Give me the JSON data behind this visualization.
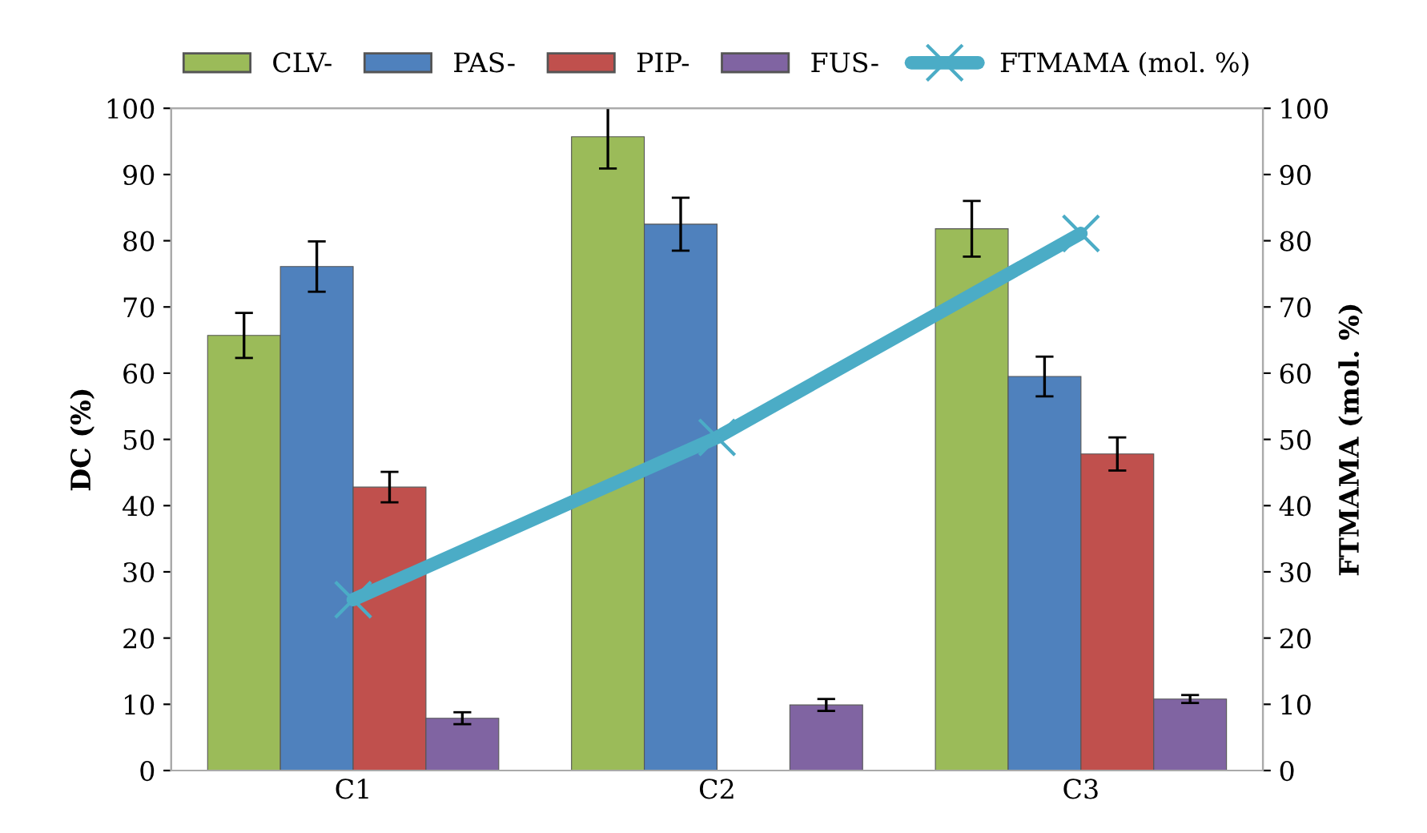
{
  "chart_data": {
    "type": "bar",
    "categories": [
      "C1",
      "C2",
      "C3"
    ],
    "ylabel": "DC (%)",
    "y2label": "FTMAMA (mol. %)",
    "ylim": [
      0,
      100
    ],
    "yticks": [
      0,
      10,
      20,
      30,
      40,
      50,
      60,
      70,
      80,
      90,
      100
    ],
    "y2lim": [
      0,
      100
    ],
    "y2ticks": [
      0,
      10,
      20,
      30,
      40,
      50,
      60,
      70,
      80,
      90,
      100
    ],
    "legend": "top",
    "grid": false,
    "series": [
      {
        "name": "CLV-",
        "color": "#9bbb59",
        "values": [
          65.7,
          95.7,
          81.8
        ],
        "errors": [
          3.4,
          4.8,
          4.2
        ]
      },
      {
        "name": "PAS-",
        "color": "#4f81bd",
        "values": [
          76.1,
          82.5,
          59.5
        ],
        "errors": [
          3.8,
          4.0,
          3.0
        ]
      },
      {
        "name": "PIP-",
        "color": "#c0504d",
        "values": [
          42.8,
          null,
          47.8
        ],
        "errors": [
          2.3,
          null,
          2.5
        ]
      },
      {
        "name": "FUS-",
        "color": "#8064a2",
        "values": [
          7.9,
          9.9,
          10.8
        ],
        "errors": [
          0.9,
          0.9,
          0.6
        ]
      },
      {
        "name": "FTMAMA (mol. %)",
        "type": "line",
        "axis": "y2",
        "color": "#4bacc6",
        "marker": "cross",
        "values": [
          25.8,
          50.3,
          81.1
        ]
      }
    ]
  }
}
